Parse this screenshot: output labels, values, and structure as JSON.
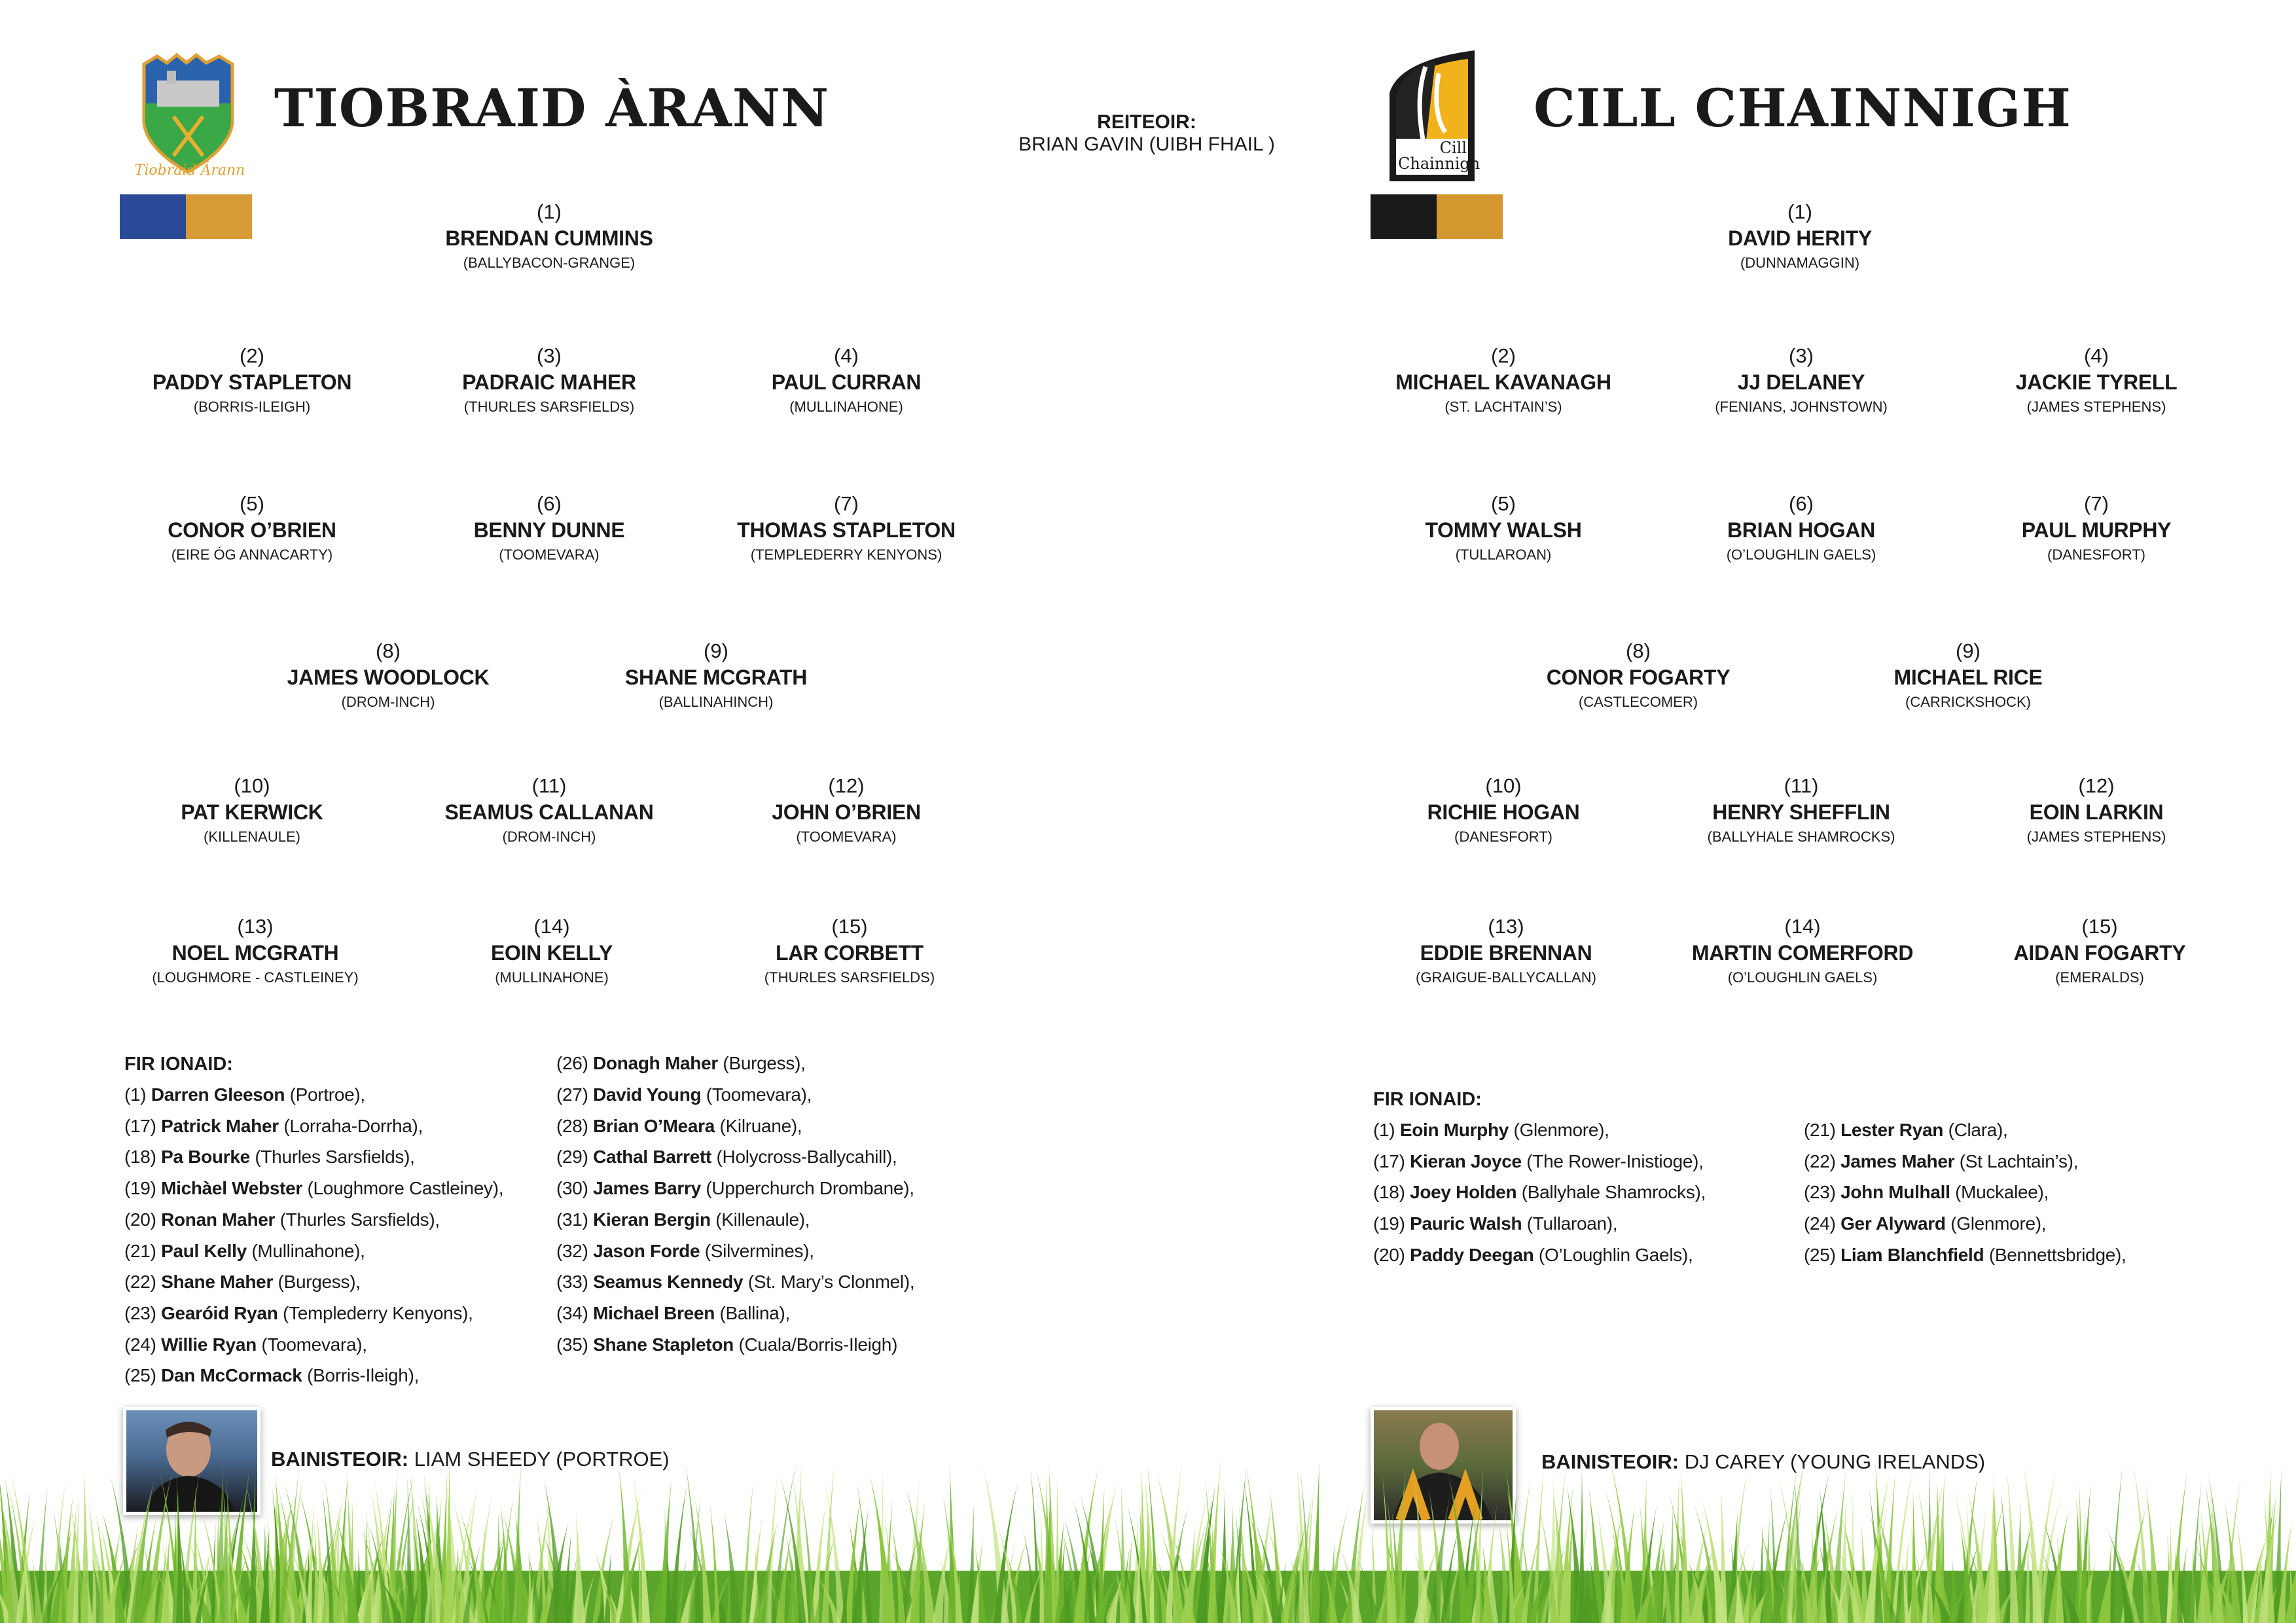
{
  "referee": {
    "label": "REITEOIR:",
    "name": "BRIAN GAVIN (UIBH FHAIL )"
  },
  "teams": [
    {
      "title": "TIOBRAID ÀRANN",
      "logo_text": "Tiobraid Árann",
      "colors": [
        "#2a4a98",
        "#d89a34"
      ],
      "players": [
        {
          "num": "(1)",
          "name": "BRENDAN CUMMINS",
          "club": "(BALLYBACON-GRANGE)"
        },
        {
          "num": "(2)",
          "name": "PADDY STAPLETON",
          "club": "(BORRIS-ILEIGH)"
        },
        {
          "num": "(3)",
          "name": "PADRAIC MAHER",
          "club": "(THURLES SARSFIELDS)"
        },
        {
          "num": "(4)",
          "name": "PAUL CURRAN",
          "club": "(MULLINAHONE)"
        },
        {
          "num": "(5)",
          "name": "CONOR O’BRIEN",
          "club": "(EIRE ÓG ANNACARTY)"
        },
        {
          "num": "(6)",
          "name": "BENNY DUNNE",
          "club": "(TOOMEVARA)"
        },
        {
          "num": "(7)",
          "name": "THOMAS STAPLETON",
          "club": "(TEMPLEDERRY KENYONS)"
        },
        {
          "num": "(8)",
          "name": "JAMES WOODLOCK",
          "club": "(DROM-INCH)"
        },
        {
          "num": "(9)",
          "name": "SHANE MCGRATH",
          "club": "(BALLINAHINCH)"
        },
        {
          "num": "(10)",
          "name": "PAT KERWICK",
          "club": "(KILLENAULE)"
        },
        {
          "num": "(11)",
          "name": "SEAMUS CALLANAN",
          "club": "(DROM-INCH)"
        },
        {
          "num": "(12)",
          "name": "JOHN O’BRIEN",
          "club": "(TOOMEVARA)"
        },
        {
          "num": "(13)",
          "name": "NOEL MCGRATH",
          "club": "(LOUGHMORE - CASTLEINEY)"
        },
        {
          "num": "(14)",
          "name": "EOIN KELLY",
          "club": "(MULLINAHONE)"
        },
        {
          "num": "(15)",
          "name": "LAR CORBETT",
          "club": "(THURLES SARSFIELDS)"
        }
      ],
      "subs_label": "FIR IONAID:",
      "subs": [
        {
          "num": "(1)",
          "name": "Darren Gleeson",
          "club": "(Portroe),"
        },
        {
          "num": "(17)",
          "name": "Patrick Maher",
          "club": "(Lorraha-Dorrha),"
        },
        {
          "num": "(18)",
          "name": "Pa Bourke",
          "club": "(Thurles Sarsfields),"
        },
        {
          "num": "(19)",
          "name": "Michàel Webster",
          "club": "(Loughmore Castleiney),"
        },
        {
          "num": "(20)",
          "name": "Ronan Maher",
          "club": "(Thurles Sarsfields),"
        },
        {
          "num": "(21)",
          "name": "Paul Kelly",
          "club": "(Mullinahone),"
        },
        {
          "num": "(22)",
          "name": "Shane Maher",
          "club": "(Burgess),"
        },
        {
          "num": "(23)",
          "name": "Gearóid Ryan",
          "club": "(Templederry Kenyons),"
        },
        {
          "num": "(24)",
          "name": "Willie Ryan",
          "club": "(Toomevara),"
        },
        {
          "num": "(25)",
          "name": "Dan McCormack",
          "club": "(Borris-Ileigh),"
        },
        {
          "num": "(26)",
          "name": "Donagh Maher",
          "club": "(Burgess),"
        },
        {
          "num": "(27)",
          "name": "David Young",
          "club": "(Toomevara),"
        },
        {
          "num": "(28)",
          "name": "Brian O’Meara",
          "club": "(Kilruane),"
        },
        {
          "num": "(29)",
          "name": "Cathal Barrett",
          "club": "(Holycross-Ballycahill),"
        },
        {
          "num": "(30)",
          "name": "James Barry",
          "club": "(Upperchurch Drombane),"
        },
        {
          "num": "(31)",
          "name": "Kieran Bergin",
          "club": "(Killenaule),"
        },
        {
          "num": "(32)",
          "name": "Jason Forde",
          "club": "(Silvermines),"
        },
        {
          "num": "(33)",
          "name": "Seamus Kennedy",
          "club": "(St. Mary’s Clonmel),"
        },
        {
          "num": "(34)",
          "name": "Michael Breen",
          "club": "(Ballina),"
        },
        {
          "num": "(35)",
          "name": "Shane Stapleton",
          "club": "(Cuala/Borris-Ileigh)"
        }
      ],
      "manager_label": "BAINISTEOIR:",
      "manager": "LIAM SHEEDY (PORTROE)"
    },
    {
      "title": "CILL CHAINNIGH",
      "logo_text": "Cill Chainnigh",
      "colors": [
        "#1a1a1a",
        "#d4962f"
      ],
      "players": [
        {
          "num": "(1)",
          "name": "DAVID HERITY",
          "club": "(DUNNAMAGGIN)"
        },
        {
          "num": "(2)",
          "name": "MICHAEL KAVANAGH",
          "club": "(ST. LACHTAIN’S)"
        },
        {
          "num": "(3)",
          "name": "JJ DELANEY",
          "club": "(FENIANS, JOHNSTOWN)"
        },
        {
          "num": "(4)",
          "name": "JACKIE TYRELL",
          "club": "(JAMES STEPHENS)"
        },
        {
          "num": "(5)",
          "name": "TOMMY WALSH",
          "club": "(TULLAROAN)"
        },
        {
          "num": "(6)",
          "name": "BRIAN HOGAN",
          "club": "(O’LOUGHLIN GAELS)"
        },
        {
          "num": "(7)",
          "name": "PAUL MURPHY",
          "club": "(DANESFORT)"
        },
        {
          "num": "(8)",
          "name": "CONOR FOGARTY",
          "club": "(CASTLECOMER)"
        },
        {
          "num": "(9)",
          "name": "MICHAEL RICE",
          "club": "(CARRICKSHOCK)"
        },
        {
          "num": "(10)",
          "name": "RICHIE HOGAN",
          "club": "(DANESFORT)"
        },
        {
          "num": "(11)",
          "name": "HENRY SHEFFLIN",
          "club": "(BALLYHALE SHAMROCKS)"
        },
        {
          "num": "(12)",
          "name": "EOIN LARKIN",
          "club": "(JAMES STEPHENS)"
        },
        {
          "num": "(13)",
          "name": "EDDIE BRENNAN",
          "club": "(GRAIGUE-BALLYCALLAN)"
        },
        {
          "num": "(14)",
          "name": "MARTIN COMERFORD",
          "club": "(O’LOUGHLIN GAELS)"
        },
        {
          "num": "(15)",
          "name": "AIDAN FOGARTY",
          "club": "(EMERALDS)"
        }
      ],
      "subs_label": "FIR IONAID:",
      "subs": [
        {
          "num": "(1)",
          "name": "Eoin Murphy",
          "club": "(Glenmore),"
        },
        {
          "num": "(17)",
          "name": "Kieran Joyce",
          "club": "(The Rower-Inistioge),"
        },
        {
          "num": "(18)",
          "name": "Joey Holden",
          "club": "(Ballyhale Shamrocks),"
        },
        {
          "num": "(19)",
          "name": "Pauric Walsh",
          "club": "(Tullaroan),"
        },
        {
          "num": "(20)",
          "name": "Paddy Deegan",
          "club": "(O’Loughlin Gaels),"
        },
        {
          "num": "(21)",
          "name": "Lester Ryan",
          "club": "(Clara),"
        },
        {
          "num": "(22)",
          "name": "James Maher",
          "club": "(St Lachtain’s),"
        },
        {
          "num": "(23)",
          "name": "John Mulhall",
          "club": "(Muckalee),"
        },
        {
          "num": "(24)",
          "name": "Ger Alyward",
          "club": "(Glenmore),"
        },
        {
          "num": "(25)",
          "name": "Liam Blanchfield",
          "club": "(Bennettsbridge),"
        }
      ],
      "manager_label": "BAINISTEOIR:",
      "manager": "DJ CAREY (YOUNG IRELANDS)"
    }
  ]
}
